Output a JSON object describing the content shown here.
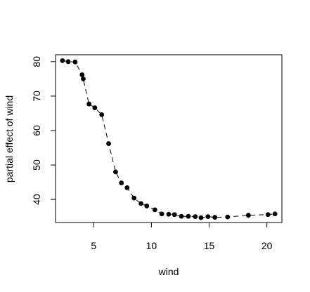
{
  "chart_data": {
    "type": "line",
    "title": "",
    "xlabel": "wind",
    "ylabel": "partial effect of wind",
    "xlim": [
      1.7,
      21.3
    ],
    "ylim": [
      33.3,
      82.0
    ],
    "xticks": [
      5,
      10,
      15,
      20
    ],
    "yticks": [
      40,
      50,
      60,
      70,
      80
    ],
    "grid": false,
    "line_style": "dashed",
    "marker": "filled-circle",
    "series": [
      {
        "x": [
          2.3,
          2.8,
          3.4,
          4.0,
          4.1,
          4.6,
          5.1,
          5.7,
          6.3,
          6.9,
          7.4,
          7.9,
          8.5,
          9.1,
          9.6,
          10.3,
          10.9,
          11.5,
          12.0,
          12.6,
          13.2,
          13.8,
          14.3,
          14.9,
          15.5,
          16.6,
          18.4,
          20.1,
          20.7
        ],
        "y": [
          80.3,
          80.0,
          79.9,
          76.2,
          75.0,
          67.7,
          66.6,
          64.6,
          56.2,
          48.0,
          44.8,
          43.4,
          40.4,
          38.8,
          38.1,
          37.0,
          35.8,
          35.7,
          35.6,
          35.1,
          35.1,
          35.0,
          34.7,
          35.0,
          34.8,
          34.9,
          35.4,
          35.6,
          35.8
        ]
      }
    ]
  }
}
